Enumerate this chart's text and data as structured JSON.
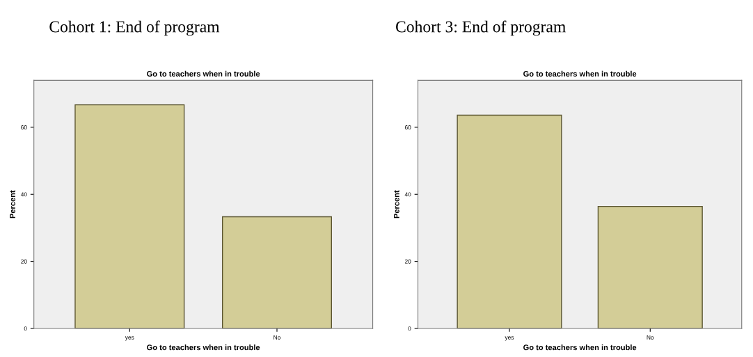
{
  "chart_data": [
    {
      "type": "bar",
      "title": "Cohort 1: End of program",
      "subtitle": "Go to teachers when in trouble",
      "xlabel": "Go to teachers when in trouble",
      "ylabel": "Percent",
      "categories": [
        "yes",
        "No"
      ],
      "values": [
        66.7,
        33.3
      ],
      "color": "#d3cd97",
      "ylim": [
        0,
        74
      ],
      "yticks": [
        0,
        20,
        40,
        60
      ],
      "grid": false,
      "legend": false
    },
    {
      "type": "bar",
      "title": "Cohort 3: End of program",
      "subtitle": "Go to teachers when in trouble",
      "xlabel": "Go to teachers when in trouble",
      "ylabel": "Percent",
      "categories": [
        "yes",
        "No"
      ],
      "values": [
        63.6,
        36.4
      ],
      "color": "#d3cd97",
      "ylim": [
        0,
        74
      ],
      "yticks": [
        0,
        20,
        40,
        60
      ],
      "grid": false,
      "legend": false
    }
  ]
}
